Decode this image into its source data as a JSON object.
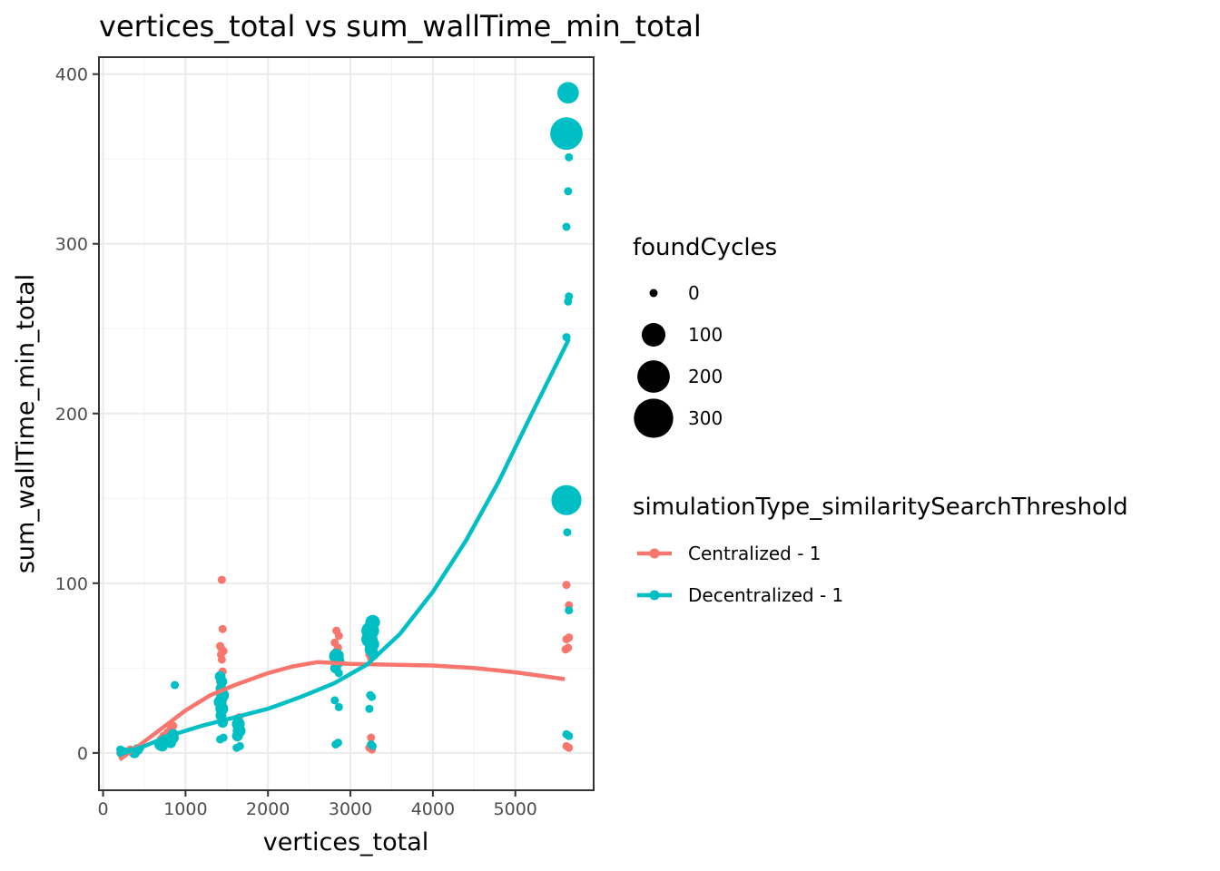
{
  "chart_data": {
    "type": "scatter",
    "title": "vertices_total  vs  sum_wallTime_min_total",
    "xlabel": "vertices_total",
    "ylabel": "sum_wallTime_min_total",
    "xlim": [
      -50,
      5950
    ],
    "ylim": [
      -22,
      410
    ],
    "x_ticks": [
      0,
      1000,
      2000,
      3000,
      4000,
      5000
    ],
    "y_ticks": [
      0,
      100,
      200,
      300,
      400
    ],
    "x_tick_labels": [
      "0",
      "1000",
      "2000",
      "3000",
      "4000",
      "5000"
    ],
    "y_tick_labels": [
      "0",
      "100",
      "200",
      "300",
      "400"
    ],
    "grid": true,
    "legend_position": "right",
    "size_legend": {
      "title": "foundCycles",
      "entries": [
        {
          "label": "0",
          "value": 0
        },
        {
          "label": "100",
          "value": 100
        },
        {
          "label": "200",
          "value": 200
        },
        {
          "label": "300",
          "value": 300
        }
      ]
    },
    "color_legend": {
      "title": "simulationType_similaritySearchThreshold",
      "entries": [
        {
          "label": "Centralized - 1",
          "color": "#F8766D"
        },
        {
          "label": "Decentralized - 1",
          "color": "#00BFC4"
        }
      ]
    },
    "series": [
      {
        "name": "Centralized - 1",
        "color": "#F8766D",
        "points": [
          [
            210,
            0,
            0
          ],
          [
            260,
            1,
            0
          ],
          [
            330,
            2,
            0
          ],
          [
            420,
            2,
            0
          ],
          [
            700,
            8,
            0
          ],
          [
            730,
            10,
            0
          ],
          [
            780,
            12,
            0
          ],
          [
            820,
            14,
            0
          ],
          [
            850,
            16,
            0
          ],
          [
            1440,
            102,
            0
          ],
          [
            1450,
            73,
            0
          ],
          [
            1420,
            63,
            0
          ],
          [
            1430,
            62,
            0
          ],
          [
            1460,
            60,
            0
          ],
          [
            1430,
            58,
            0
          ],
          [
            1440,
            55,
            0
          ],
          [
            1450,
            48,
            0
          ],
          [
            1420,
            42,
            0
          ],
          [
            1440,
            38,
            0
          ],
          [
            1430,
            35,
            0
          ],
          [
            1460,
            32,
            0
          ],
          [
            1650,
            21,
            0
          ],
          [
            1630,
            18,
            0
          ],
          [
            2830,
            72,
            0
          ],
          [
            2860,
            69,
            0
          ],
          [
            2810,
            65,
            0
          ],
          [
            2850,
            62,
            0
          ],
          [
            2830,
            60,
            0
          ],
          [
            2870,
            58,
            0
          ],
          [
            3240,
            62,
            0
          ],
          [
            3260,
            60,
            0
          ],
          [
            3230,
            58,
            0
          ],
          [
            3250,
            56,
            0
          ],
          [
            3250,
            9,
            0
          ],
          [
            3230,
            3,
            0
          ],
          [
            3260,
            2,
            0
          ],
          [
            5620,
            99,
            0
          ],
          [
            5650,
            87,
            0
          ],
          [
            5650,
            68,
            0
          ],
          [
            5620,
            67,
            0
          ],
          [
            5640,
            62,
            0
          ],
          [
            5610,
            61,
            0
          ],
          [
            5620,
            4,
            0
          ],
          [
            5650,
            3,
            0
          ]
        ],
        "smooth": [
          [
            200,
            -4
          ],
          [
            400,
            3
          ],
          [
            700,
            14
          ],
          [
            1000,
            25
          ],
          [
            1300,
            34
          ],
          [
            1600,
            40
          ],
          [
            2000,
            47
          ],
          [
            2300,
            51
          ],
          [
            2600,
            53.5
          ],
          [
            3000,
            52.5
          ],
          [
            3500,
            52
          ],
          [
            4000,
            51.5
          ],
          [
            4500,
            50
          ],
          [
            5000,
            47.5
          ],
          [
            5600,
            43.5
          ]
        ]
      },
      {
        "name": "Decentralized - 1",
        "color": "#00BFC4",
        "points": [
          [
            210,
            2,
            0
          ],
          [
            230,
            0,
            10
          ],
          [
            260,
            1,
            0
          ],
          [
            340,
            1,
            0
          ],
          [
            380,
            0,
            10
          ],
          [
            420,
            2,
            10
          ],
          [
            450,
            3,
            0
          ],
          [
            700,
            5,
            20
          ],
          [
            720,
            4,
            10
          ],
          [
            750,
            7,
            20
          ],
          [
            780,
            8,
            10
          ],
          [
            820,
            6,
            10
          ],
          [
            840,
            9,
            20
          ],
          [
            850,
            11,
            10
          ],
          [
            870,
            40,
            0
          ],
          [
            1420,
            45,
            10
          ],
          [
            1440,
            42,
            10
          ],
          [
            1430,
            38,
            10
          ],
          [
            1450,
            34,
            20
          ],
          [
            1420,
            30,
            20
          ],
          [
            1440,
            26,
            20
          ],
          [
            1430,
            22,
            10
          ],
          [
            1450,
            18,
            10
          ],
          [
            1420,
            8,
            0
          ],
          [
            1460,
            9,
            0
          ],
          [
            1640,
            17,
            20
          ],
          [
            1650,
            13,
            20
          ],
          [
            1630,
            10,
            10
          ],
          [
            1660,
            4,
            0
          ],
          [
            1620,
            3,
            0
          ],
          [
            2830,
            57,
            30
          ],
          [
            2850,
            54,
            20
          ],
          [
            2820,
            50,
            10
          ],
          [
            2860,
            47,
            0
          ],
          [
            2810,
            31,
            0
          ],
          [
            2860,
            27,
            0
          ],
          [
            2820,
            5,
            0
          ],
          [
            2850,
            6,
            0
          ],
          [
            3240,
            72,
            50
          ],
          [
            3270,
            77,
            30
          ],
          [
            3230,
            67,
            40
          ],
          [
            3260,
            64,
            30
          ],
          [
            3250,
            61,
            20
          ],
          [
            3280,
            58,
            10
          ],
          [
            3260,
            33,
            0
          ],
          [
            3240,
            34,
            0
          ],
          [
            3230,
            26,
            0
          ],
          [
            3250,
            5,
            0
          ],
          [
            3270,
            4,
            0
          ],
          [
            5640,
            389,
            80
          ],
          [
            5620,
            365,
            200
          ],
          [
            5650,
            351,
            0
          ],
          [
            5640,
            331,
            0
          ],
          [
            5620,
            310,
            0
          ],
          [
            5650,
            269,
            0
          ],
          [
            5640,
            266,
            0
          ],
          [
            5620,
            245,
            0
          ],
          [
            5620,
            149,
            170
          ],
          [
            5630,
            130,
            0
          ],
          [
            5650,
            84,
            0
          ],
          [
            5620,
            11,
            0
          ],
          [
            5650,
            10,
            0
          ]
        ],
        "smooth": [
          [
            200,
            -1
          ],
          [
            500,
            4
          ],
          [
            800,
            10
          ],
          [
            1200,
            16
          ],
          [
            1600,
            21
          ],
          [
            2000,
            26
          ],
          [
            2400,
            33
          ],
          [
            2800,
            41
          ],
          [
            3200,
            52
          ],
          [
            3600,
            70
          ],
          [
            4000,
            95
          ],
          [
            4400,
            125
          ],
          [
            4800,
            160
          ],
          [
            5200,
            200
          ],
          [
            5650,
            244
          ]
        ]
      }
    ]
  }
}
